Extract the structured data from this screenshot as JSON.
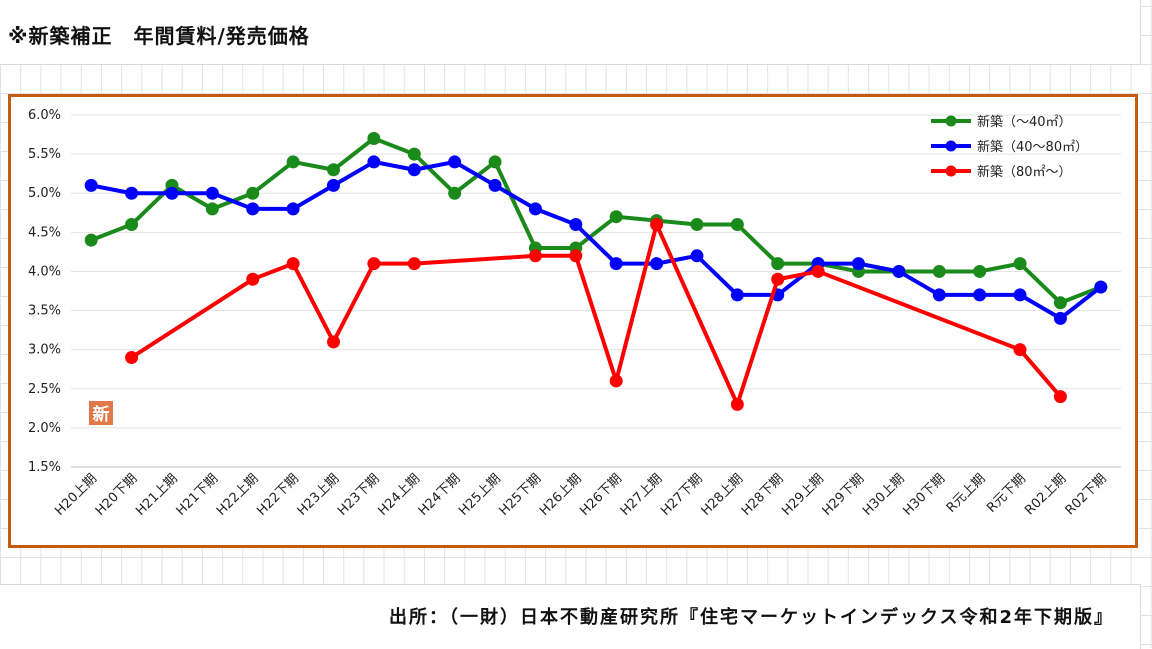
{
  "page": {
    "title": "※新築補正　年間賃料/発売価格",
    "source": "出所：（一財）日本不動産研究所『住宅マーケットインデックス令和2年下期版』",
    "badge": "新"
  },
  "chart_data": {
    "type": "line",
    "title": "",
    "xlabel": "",
    "ylabel": "",
    "categories": [
      "H20上期",
      "H20下期",
      "H21上期",
      "H21下期",
      "H22上期",
      "H22下期",
      "H23上期",
      "H23下期",
      "H24上期",
      "H24下期",
      "H25上期",
      "H25下期",
      "H26上期",
      "H26下期",
      "H27上期",
      "H27下期",
      "H28上期",
      "H28下期",
      "H29上期",
      "H29下期",
      "H30上期",
      "H30下期",
      "R元上期",
      "R元下期",
      "R02上期",
      "R02下期"
    ],
    "ylim": [
      1.5,
      6.0
    ],
    "yticks": [
      "6.0%",
      "5.5%",
      "5.0%",
      "4.5%",
      "4.0%",
      "3.5%",
      "3.0%",
      "2.5%",
      "2.0%",
      "1.5%"
    ],
    "ytick_values": [
      6.0,
      5.5,
      5.0,
      4.5,
      4.0,
      3.5,
      3.0,
      2.5,
      2.0,
      1.5
    ],
    "legend_position": "top-right",
    "series": [
      {
        "name": "新築（～40㎡）",
        "color": "#1a8a1a",
        "values": [
          4.4,
          4.6,
          5.1,
          4.8,
          5.0,
          5.4,
          5.3,
          5.7,
          5.5,
          5.0,
          5.4,
          4.3,
          4.3,
          4.7,
          4.65,
          4.6,
          4.6,
          4.1,
          4.1,
          4.0,
          4.0,
          4.0,
          4.0,
          4.1,
          3.6,
          3.8
        ]
      },
      {
        "name": "新築（40～80㎡）",
        "color": "#0000ff",
        "values": [
          5.1,
          5.0,
          5.0,
          5.0,
          4.8,
          4.8,
          5.1,
          5.4,
          5.3,
          5.4,
          5.1,
          4.8,
          4.6,
          4.1,
          4.1,
          4.2,
          3.7,
          3.7,
          4.1,
          4.1,
          4.0,
          3.7,
          3.7,
          3.7,
          3.4,
          3.8
        ]
      },
      {
        "name": "新築（80㎡～）",
        "color": "#ff0000",
        "values": [
          null,
          2.9,
          null,
          null,
          3.9,
          4.1,
          3.1,
          4.1,
          4.1,
          null,
          null,
          4.2,
          4.2,
          2.6,
          4.6,
          null,
          2.3,
          3.9,
          4.0,
          null,
          null,
          null,
          null,
          3.0,
          2.4,
          null
        ]
      }
    ]
  }
}
